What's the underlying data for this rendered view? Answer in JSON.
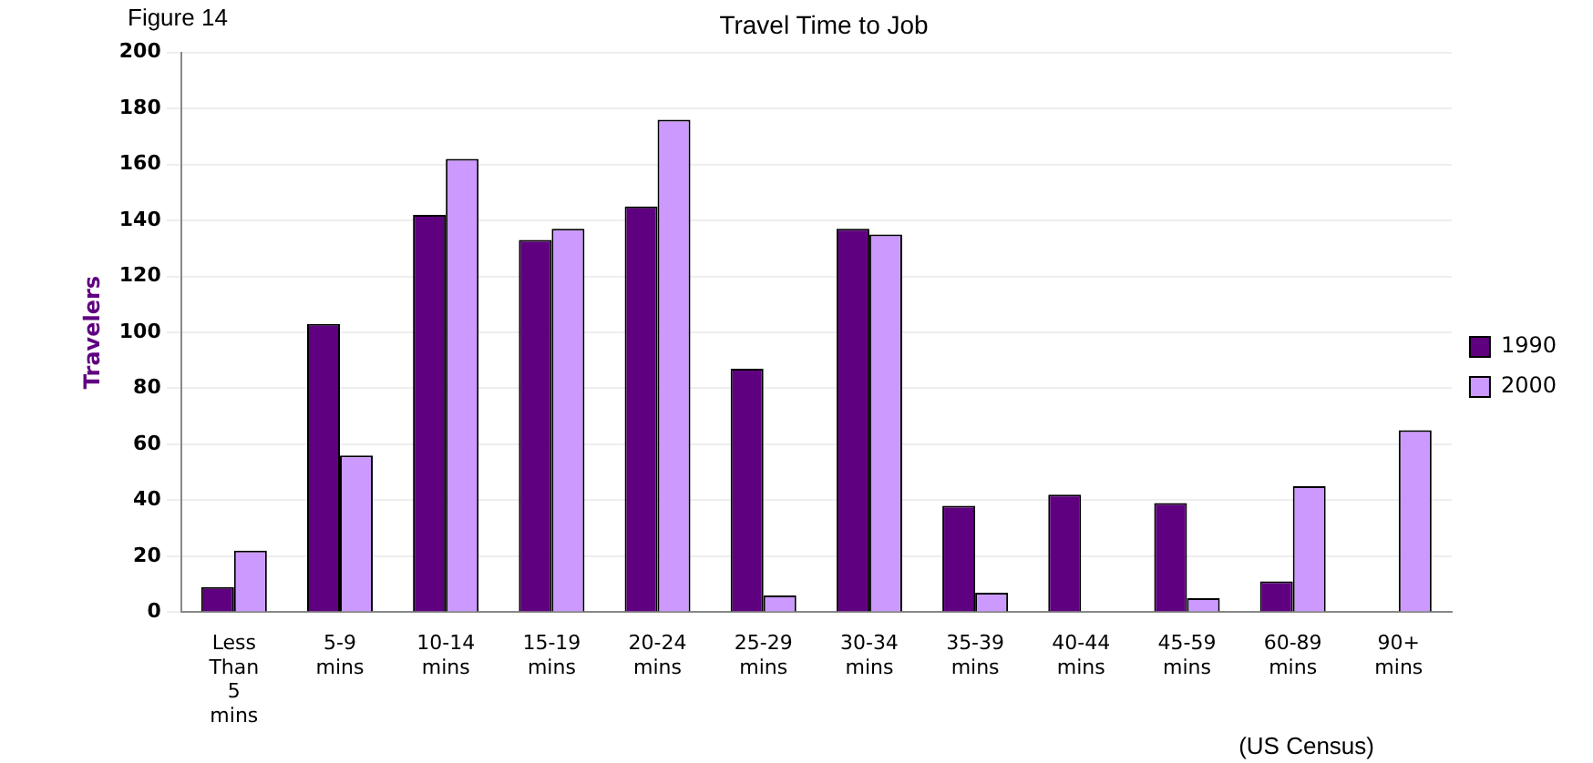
{
  "chart_data": {
    "type": "bar",
    "title": "Travel Time to Job",
    "ylabel": "Travelers",
    "categories": [
      "Less Than 5 mins",
      "5-9 mins",
      "10-14 mins",
      "15-19 mins",
      "20-24 mins",
      "25-29 mins",
      "30-34 mins",
      "35-39 mins",
      "40-44 mins",
      "45-59 mins",
      "60-89 mins",
      "90+ mins"
    ],
    "series": [
      {
        "name": "1990",
        "color": "#5f0080",
        "values": [
          9,
          103,
          142,
          133,
          145,
          87,
          137,
          38,
          42,
          39,
          11,
          null
        ]
      },
      {
        "name": "2000",
        "color": "#cc99ff",
        "values": [
          22,
          56,
          162,
          137,
          176,
          6,
          135,
          7,
          null,
          5,
          45,
          65
        ]
      }
    ],
    "ylim": [
      0,
      200
    ],
    "yticks": [
      0,
      20,
      40,
      60,
      80,
      100,
      120,
      140,
      160,
      180,
      200
    ],
    "grid": "y",
    "legend": "right",
    "annotations": [
      "Figure 14",
      "(US Census)"
    ]
  }
}
